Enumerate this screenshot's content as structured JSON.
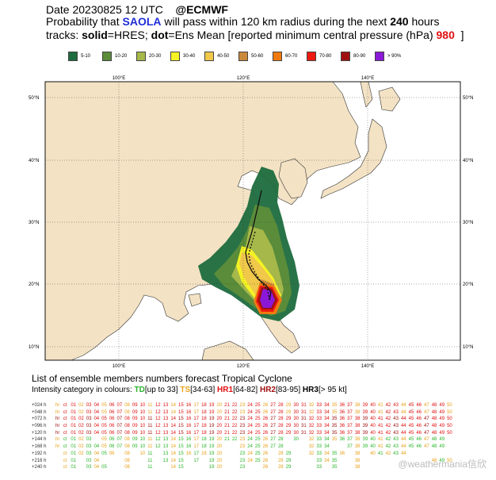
{
  "header": {
    "line1": "Date 20230825 12 UTC",
    "org": "@ECMWF",
    "l2_a": "Probability that ",
    "storm": "SAOLA",
    "l2_b": " will pass within 120 km radius during the next ",
    "hours": "240",
    "l2_c": " hours",
    "l3_a": "tracks: ",
    "solid": "solid",
    "l3_b": "=HRES; ",
    "dot": "dot",
    "l3_c": "=Ens Mean [reported minimum central pressure (hPa) ",
    "pressure": "980",
    "l3_d": "]"
  },
  "legend": [
    {
      "label": "5-10",
      "color": "#1d6b3e"
    },
    {
      "label": "10-20",
      "color": "#5a8c3a"
    },
    {
      "label": "20-30",
      "color": "#a6b84a"
    },
    {
      "label": "30-40",
      "color": "#f4f224"
    },
    {
      "label": "40-50",
      "color": "#f0c84a"
    },
    {
      "label": "50-60",
      "color": "#c9883a"
    },
    {
      "label": "60-70",
      "color": "#f07a12"
    },
    {
      "label": "70-80",
      "color": "#ee1a10"
    },
    {
      "label": "80-90",
      "color": "#a01010"
    },
    {
      "label": "> 90%",
      "color": "#8b18d8"
    }
  ],
  "map": {
    "top_lon": [
      "100°E",
      "120°E",
      "140°E"
    ],
    "bottom_lon": [
      "100°E",
      "120°E",
      "140°E"
    ],
    "lat": [
      "50°N",
      "40°N",
      "30°N",
      "20°N",
      "10°N"
    ],
    "land_color": "#f3e2c4",
    "sea_color": "#ffffff"
  },
  "members": {
    "title": "List of ensemble members numbers forecast Tropical Cyclone",
    "intensity_prefix": "Intensity category in colours: ",
    "td": "TD",
    "td_range": "[up to 33] ",
    "ts": "TS",
    "ts_range": "[34-63] ",
    "hr1": "HR1",
    "hr1_range": "[64-82] ",
    "hr2": "HR2",
    "hr2_range": "[83-95] ",
    "hr3": "HR3",
    "hr3_range": "[> 95 kt]"
  },
  "member_rows": [
    {
      "label": "+024 h",
      "cells": [
        "hr",
        "ct",
        "01",
        "02",
        "03",
        "04",
        "05",
        "06",
        "07",
        "08",
        "09",
        "10",
        "11",
        "12",
        "13",
        "14",
        "15",
        "16",
        "17",
        "18",
        "19",
        "20",
        "21",
        "22",
        "23",
        "24",
        "25",
        "26",
        "27",
        "28",
        "29",
        "30",
        "31",
        "32",
        "33",
        "34",
        "35",
        "36",
        "37",
        "38",
        "39",
        "40",
        "41",
        "42",
        "43",
        "44",
        "45",
        "46",
        "47",
        "48",
        "49",
        "50"
      ]
    },
    {
      "label": "+048 h",
      "cells": [
        "hr",
        "ct",
        "01",
        "02",
        "03",
        "04",
        "05",
        "06",
        "07",
        "08",
        "09",
        "10",
        "11",
        "12",
        "13",
        "14",
        "15",
        "16",
        "17",
        "18",
        "19",
        "20",
        "21",
        "22",
        "23",
        "24",
        "25",
        "26",
        "27",
        "28",
        "29",
        "30",
        "31",
        "32",
        "33",
        "34",
        "35",
        "36",
        "37",
        "38",
        "39",
        "40",
        "41",
        "42",
        "43",
        "44",
        "45",
        "46",
        "47",
        "48",
        "49",
        "50"
      ]
    },
    {
      "label": "+072 h",
      "cells": [
        "hr",
        "ct",
        "01",
        "02",
        "03",
        "04",
        "05",
        "06",
        "07",
        "08",
        "09",
        "10",
        "11",
        "12",
        "13",
        "14",
        "15",
        "16",
        "17",
        "18",
        "19",
        "20",
        "21",
        "22",
        "23",
        "24",
        "25",
        "26",
        "27",
        "28",
        "29",
        "30",
        "31",
        "32",
        "33",
        "34",
        "35",
        "36",
        "37",
        "38",
        "39",
        "40",
        "41",
        "42",
        "43",
        "44",
        "45",
        "46",
        "47",
        "48",
        "49",
        "50"
      ]
    },
    {
      "label": "+096 h",
      "cells": [
        "hr",
        "ct",
        "01",
        "02",
        "03",
        "04",
        "05",
        "06",
        "07",
        "08",
        "09",
        "10",
        "11",
        "12",
        "13",
        "14",
        "15",
        "16",
        "17",
        "18",
        "19",
        "20",
        "21",
        "22",
        "23",
        "24",
        "25",
        "26",
        "27",
        "28",
        "29",
        "30",
        "31",
        "32",
        "33",
        "34",
        "35",
        "36",
        "37",
        "38",
        "39",
        "40",
        "41",
        "42",
        "43",
        "44",
        "45",
        "46",
        "47",
        "48",
        "49",
        "50"
      ]
    },
    {
      "label": "+120 h",
      "cells": [
        "hr",
        "ct",
        "01",
        "02",
        "03",
        "04",
        "05",
        "06",
        "07",
        "08",
        "09",
        "10",
        "11",
        "12",
        "13",
        "14",
        "15",
        "16",
        "17",
        "18",
        "19",
        "20",
        "21",
        "22",
        "23",
        "24",
        "25",
        "26",
        "27",
        "28",
        "29",
        "30",
        "31",
        "32",
        "33",
        "34",
        "35",
        "36",
        "37",
        "38",
        "39",
        "40",
        "41",
        "42",
        "43",
        "44",
        "45",
        "46",
        "47",
        "48",
        "49",
        "50"
      ]
    },
    {
      "label": "+144 h",
      "cells": [
        "hr",
        "ct",
        "01",
        "02",
        "03",
        "",
        "05",
        "06",
        "07",
        "08",
        "09",
        "10",
        "11",
        "12",
        "13",
        "14",
        "15",
        "16",
        "17",
        "18",
        "19",
        "20",
        "21",
        "22",
        "23",
        "24",
        "25",
        "26",
        "27",
        "28",
        "",
        "30",
        "",
        "32",
        "33",
        "34",
        "35",
        "36",
        "37",
        "38",
        "39",
        "40",
        "41",
        "42",
        "43",
        "44",
        "45",
        "46",
        "47",
        "48",
        "49",
        ""
      ]
    },
    {
      "label": "+168 h",
      "cells": [
        "hr",
        "ct",
        "01",
        "02",
        "03",
        "04",
        "05",
        "06",
        "07",
        "08",
        "09",
        "10",
        "11",
        "12",
        "13",
        "14",
        "15",
        "16",
        "17",
        "18",
        "19",
        "20",
        "",
        "",
        "23",
        "24",
        "25",
        "26",
        "27",
        "28",
        "",
        "",
        "",
        "32",
        "33",
        "34",
        "",
        "",
        "37",
        "38",
        "39",
        "40",
        "41",
        "42",
        "43",
        "44",
        "45",
        "46",
        "47",
        "48",
        "49",
        ""
      ]
    },
    {
      "label": "+192 h",
      "cells": [
        "",
        "ct",
        "01",
        "02",
        "03",
        "04",
        "05",
        "06",
        "",
        "08",
        "",
        "10",
        "11",
        "",
        "13",
        "14",
        "15",
        "16",
        "17",
        "18",
        "19",
        "20",
        "",
        "",
        "23",
        "24",
        "25",
        "26",
        "",
        "28",
        "29",
        "",
        "",
        "32",
        "33",
        "34",
        "35",
        "36",
        "",
        "38",
        "",
        "40",
        "41",
        "42",
        "43",
        "44",
        "",
        "",
        "",
        "",
        "",
        ""
      ]
    },
    {
      "label": "+216 h",
      "cells": [
        "",
        "ct",
        "01",
        "",
        "03",
        "04",
        "",
        "",
        "",
        "08",
        "",
        "",
        "11",
        "",
        "13",
        "14",
        "15",
        "",
        "17",
        "",
        "19",
        "20",
        "",
        "",
        "23",
        "24",
        "25",
        "26",
        "",
        "28",
        "29",
        "",
        "",
        "",
        "33",
        "34",
        "35",
        "",
        "",
        "38",
        "",
        "",
        "",
        "",
        "",
        "",
        "",
        "",
        "",
        "48",
        "49",
        "50"
      ]
    },
    {
      "label": "+240 h",
      "cells": [
        "",
        "ct",
        "01",
        "",
        "03",
        "04",
        "05",
        "",
        "",
        "08",
        "",
        "",
        "11",
        "",
        "",
        "14",
        "15",
        "",
        "",
        "",
        "19",
        "20",
        "",
        "",
        "23",
        "",
        "",
        "26",
        "",
        "28",
        "29",
        "",
        "",
        "",
        "33",
        "",
        "35",
        "",
        "",
        "38",
        "",
        "",
        "",
        "",
        "",
        "",
        "",
        "",
        "",
        "",
        "",
        ""
      ]
    }
  ],
  "watermark": "@weathermania信欣"
}
